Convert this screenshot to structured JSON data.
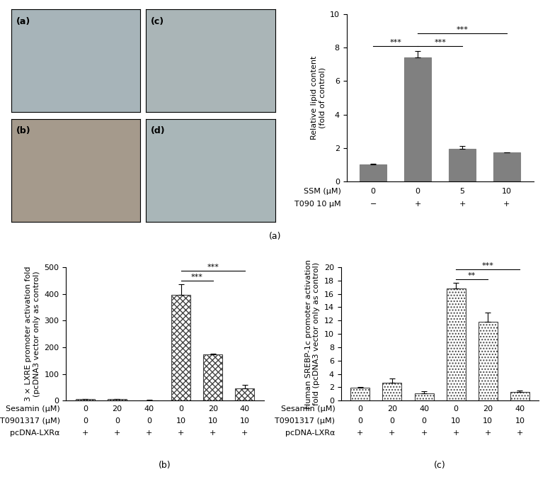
{
  "images": {
    "labels": [
      "(a)",
      "(b)",
      "(c)",
      "(d)"
    ]
  },
  "chart_data": [
    {
      "type": "bar",
      "caption": "(a)",
      "ylabel": "Relative lipid content\n(fold of control)",
      "categories": [
        null,
        null,
        null,
        null
      ],
      "values": [
        1.0,
        7.4,
        1.95,
        1.72
      ],
      "errors": [
        0.05,
        0.4,
        0.15,
        0.0
      ],
      "color": "#808080",
      "ylim": [
        0,
        10
      ],
      "yticks": [
        0,
        2,
        4,
        6,
        8,
        10
      ],
      "tick_labels": "y",
      "conditions": [
        {
          "name": "SSM (μM)",
          "values": [
            0,
            0,
            5,
            10
          ]
        },
        {
          "name": "T090 10 μM",
          "values": [
            "−",
            "+",
            "+",
            "+"
          ]
        }
      ],
      "significance": [
        {
          "bars": [
            0,
            1
          ],
          "label": "***"
        },
        {
          "bars": [
            1,
            2
          ],
          "label": "***"
        },
        {
          "bars": [
            1,
            3
          ],
          "label": "***"
        }
      ]
    },
    {
      "type": "bar",
      "caption": "(b)",
      "ylabel": "3 × LXRE promoter activation fold\n(pcDNA3 vector only as control)",
      "categories": [
        null,
        null,
        null,
        null,
        null,
        null
      ],
      "values": [
        5,
        5,
        2,
        397,
        172,
        45
      ],
      "errors": [
        1,
        1,
        1,
        38,
        5,
        15
      ],
      "color": "#ffffff",
      "ylim": [
        0,
        500
      ],
      "yticks": [
        0,
        100,
        200,
        300,
        400,
        500
      ],
      "tick_labels": "y",
      "conditions": [
        {
          "name": "Sesamin (μM)",
          "values": [
            0,
            20,
            40,
            0,
            20,
            40
          ]
        },
        {
          "name": "T0901317 (μM)",
          "values": [
            0,
            0,
            0,
            10,
            10,
            10
          ]
        },
        {
          "name": "pcDNA-LXRα",
          "values": [
            "+",
            "+",
            "+",
            "+",
            "+",
            "+"
          ]
        }
      ],
      "significance": [
        {
          "bars": [
            3,
            4
          ],
          "label": "***"
        },
        {
          "bars": [
            3,
            5
          ],
          "label": "***"
        }
      ]
    },
    {
      "type": "bar",
      "caption": "(c)",
      "ylabel": "Human SREBP-1c promoter activation\nfold (pcDNA3 vector only as control)",
      "categories": [
        null,
        null,
        null,
        null,
        null,
        null
      ],
      "values": [
        1.9,
        2.7,
        1.1,
        16.8,
        11.8,
        1.3
      ],
      "errors": [
        0.1,
        0.6,
        0.3,
        0.8,
        1.4,
        0.2
      ],
      "color": "#ffffff",
      "ylim": [
        0,
        20
      ],
      "yticks": [
        0,
        2,
        4,
        6,
        8,
        10,
        12,
        14,
        16,
        18,
        20
      ],
      "tick_labels": "y",
      "conditions": [
        {
          "name": "Sesamin (μM)",
          "values": [
            0,
            20,
            40,
            0,
            20,
            40
          ]
        },
        {
          "name": "T0901317 (μM)",
          "values": [
            0,
            0,
            0,
            10,
            10,
            10
          ]
        },
        {
          "name": "pcDNA-LXRα",
          "values": [
            "+",
            "+",
            "+",
            "+",
            "+",
            "+"
          ]
        }
      ],
      "significance": [
        {
          "bars": [
            3,
            4
          ],
          "label": "**"
        },
        {
          "bars": [
            3,
            5
          ],
          "label": "***"
        }
      ]
    }
  ]
}
